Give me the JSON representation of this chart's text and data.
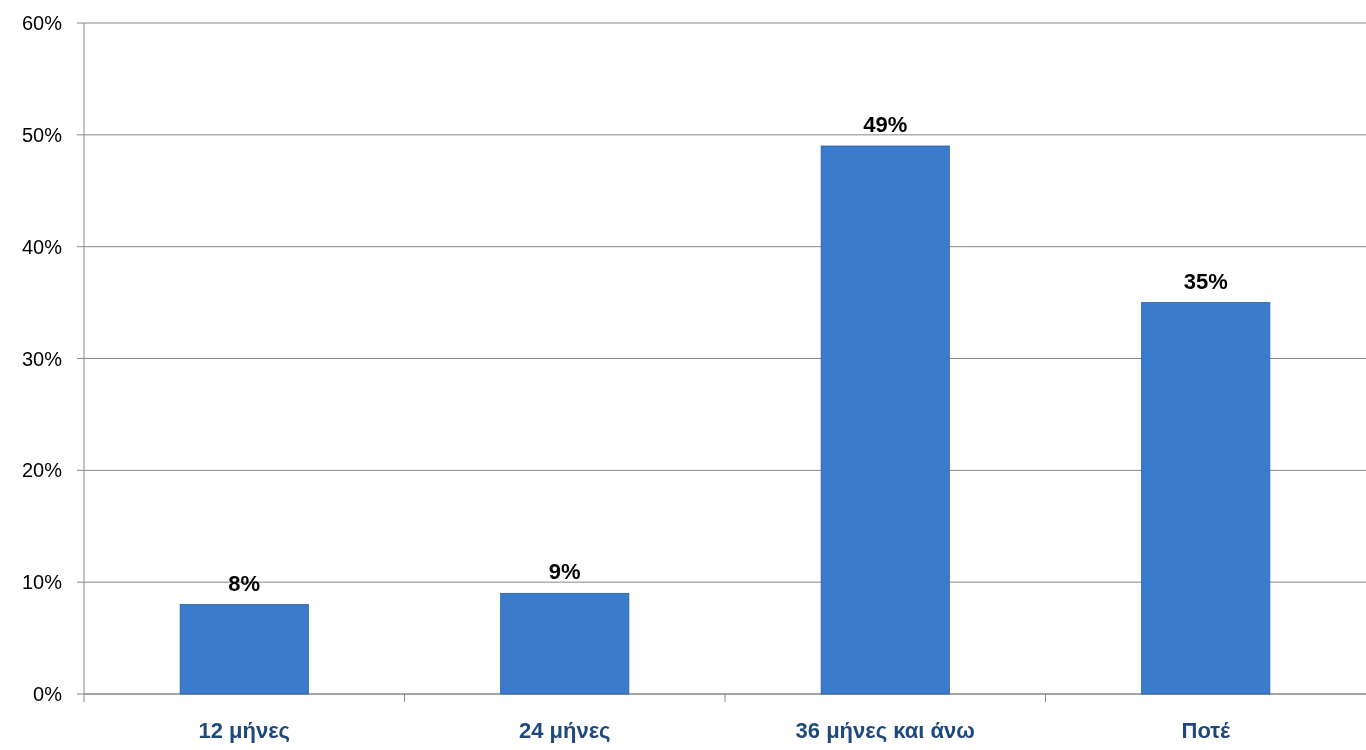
{
  "chart_data": {
    "type": "bar",
    "categories": [
      "12 μήνες",
      "24 μήνες",
      "36 μήνες και άνω",
      "Ποτέ"
    ],
    "values": [
      8,
      9,
      49,
      35
    ],
    "color": "#3b7bcc",
    "ylim": [
      0,
      60
    ],
    "yticks": [
      {
        "value": 0,
        "label": "0%"
      },
      {
        "value": 10,
        "label": "10%"
      },
      {
        "value": 20,
        "label": "20%"
      },
      {
        "value": 30,
        "label": "30%"
      },
      {
        "value": 40,
        "label": "40%"
      },
      {
        "value": 50,
        "label": "50%"
      },
      {
        "value": 60,
        "label": "60%"
      }
    ],
    "grid": "y",
    "data_labels": true,
    "value_labels": [
      "8%",
      "9%",
      "49%",
      "35%"
    ]
  }
}
